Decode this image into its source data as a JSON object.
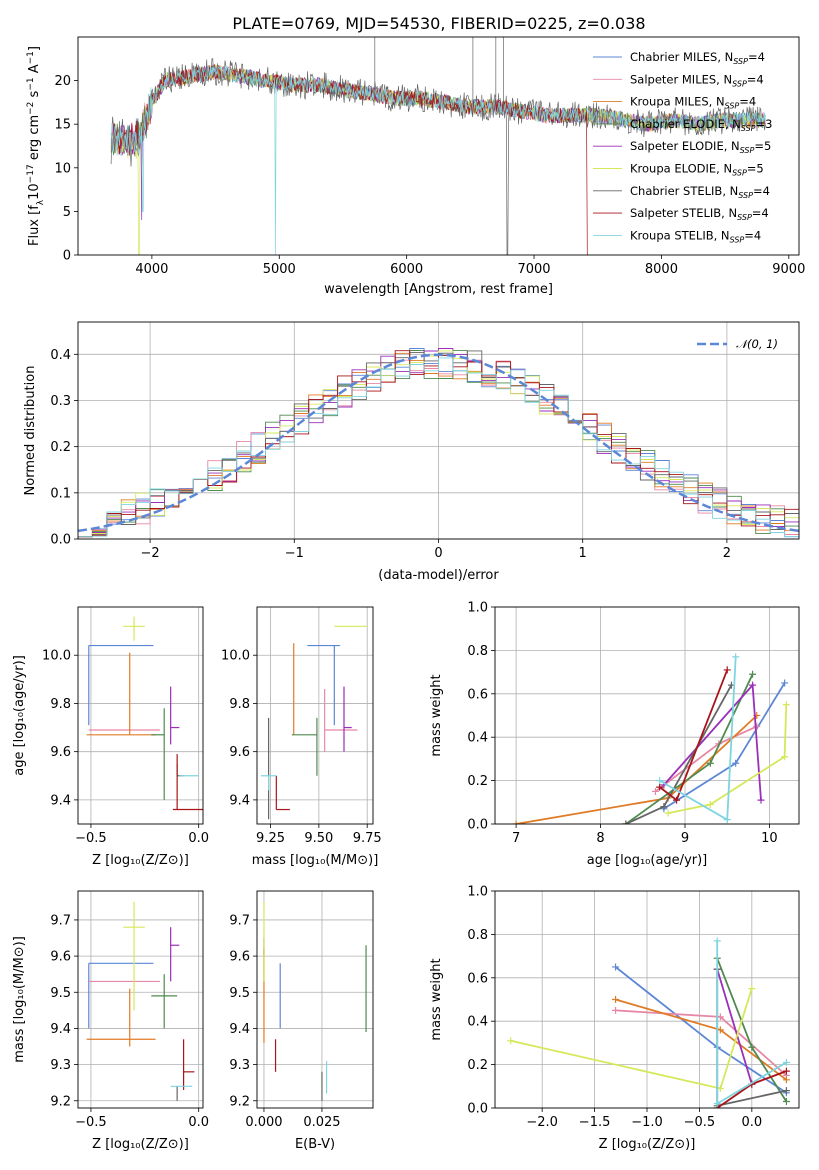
{
  "title": "PLATE=0769, MJD=54530, FIBERID=0225, z=0.038",
  "colors": {
    "chabrier_miles": "#5b87d6",
    "salpeter_miles": "#e887a5",
    "kroupa_miles": "#e07b25",
    "chabrier_elodie": "#4f8a4f",
    "salpeter_elodie": "#9a2fb8",
    "kroupa_elodie": "#d6e85a",
    "chabrier_stelib": "#666666",
    "salpeter_stelib": "#a8151a",
    "kroupa_stelib": "#7fd4e0",
    "normal_curve": "#5b87d6"
  },
  "chart_data": [
    {
      "type": "line",
      "panel": "spectrum",
      "title": "PLATE=0769, MJD=54530, FIBERID=0225, z=0.038",
      "xlabel": "wavelength [Angstrom, rest frame]",
      "ylabel": "Flux [f_λ 10^-17 erg cm^-2 s^-1 A^-1]",
      "xlim": [
        3420,
        9080
      ],
      "ylim": [
        0,
        25
      ],
      "xticks": [
        "4000",
        "5000",
        "6000",
        "7000",
        "8000",
        "9000"
      ],
      "yticks": [
        "0",
        "5",
        "10",
        "15",
        "20"
      ],
      "legend_position": "top-right",
      "legend": [
        {
          "base": "Chabrier MILES, N",
          "sub": "SSP",
          "tail": "=4",
          "color_key": "chabrier_miles"
        },
        {
          "base": "Salpeter MILES, N",
          "sub": "SSP",
          "tail": "=4",
          "color_key": "salpeter_miles"
        },
        {
          "base": "Kroupa MILES, N",
          "sub": "SSP",
          "tail": "=4",
          "color_key": "kroupa_miles"
        },
        {
          "base": "Chabrier ELODIE, N",
          "sub": "SSP",
          "tail": "=3",
          "color_key": "chabrier_elodie"
        },
        {
          "base": "Salpeter ELODIE, N",
          "sub": "SSP",
          "tail": "=5",
          "color_key": "salpeter_elodie"
        },
        {
          "base": "Kroupa ELODIE, N",
          "sub": "SSP",
          "tail": "=5",
          "color_key": "kroupa_elodie"
        },
        {
          "base": "Chabrier STELIB, N",
          "sub": "SSP",
          "tail": "=4",
          "color_key": "chabrier_stelib"
        },
        {
          "base": "Salpeter STELIB, N",
          "sub": "SSP",
          "tail": "=4",
          "color_key": "salpeter_stelib"
        },
        {
          "base": "Kroupa STELIB, N",
          "sub": "SSP",
          "tail": "=4",
          "color_key": "kroupa_stelib"
        }
      ],
      "continuum": [
        [
          3680,
          13.5
        ],
        [
          3800,
          13.0
        ],
        [
          3900,
          13.5
        ],
        [
          4000,
          17.5
        ],
        [
          4100,
          20.0
        ],
        [
          4300,
          20.5
        ],
        [
          4500,
          21.0
        ],
        [
          4700,
          20.5
        ],
        [
          4900,
          20.0
        ],
        [
          5100,
          19.5
        ],
        [
          5300,
          19.5
        ],
        [
          5500,
          19.0
        ],
        [
          5700,
          18.5
        ],
        [
          5900,
          18.0
        ],
        [
          6100,
          18.0
        ],
        [
          6300,
          17.5
        ],
        [
          6500,
          17.0
        ],
        [
          6700,
          17.0
        ],
        [
          6900,
          16.5
        ],
        [
          7100,
          16.0
        ],
        [
          7300,
          16.0
        ],
        [
          7500,
          16.0
        ],
        [
          7700,
          15.5
        ],
        [
          7900,
          15.0
        ],
        [
          8100,
          15.5
        ],
        [
          8300,
          15.0
        ],
        [
          8500,
          15.5
        ],
        [
          8700,
          15.5
        ],
        [
          8820,
          15.5
        ]
      ]
    },
    {
      "type": "bar",
      "panel": "residual-histogram",
      "xlabel": "(data-model)/error",
      "ylabel": "Normed distribution",
      "xlim": [
        -2.5,
        2.5
      ],
      "ylim": [
        0,
        0.47
      ],
      "xticks": [
        "−2",
        "−1",
        "0",
        "1",
        "2"
      ],
      "yticks": [
        "0.0",
        "0.1",
        "0.2",
        "0.3",
        "0.4"
      ],
      "legend_position": "top-right",
      "legend": [
        {
          "label": "𝒩(0, 1)",
          "color_key": "normal_curve"
        }
      ],
      "curve": {
        "type": "normal",
        "mean": 0,
        "sigma": 1
      }
    },
    {
      "type": "scatter",
      "panel": "age-vs-Z",
      "xlabel": "Z [log₁₀(Z/Z⊙)]",
      "ylabel": "age [log₁₀(age/yr)]",
      "xlim": [
        -0.56,
        0.02
      ],
      "ylim": [
        9.3,
        10.2
      ],
      "xticks": [
        "−0.5",
        "0.0"
      ],
      "yticks": [
        "9.4",
        "9.6",
        "9.8",
        "10.0"
      ],
      "points": [
        {
          "color_key": "chabrier_miles",
          "x": -0.51,
          "xerr": [
            0.0,
            0.3
          ],
          "y": 10.04,
          "yerr": [
            0.33,
            0.0
          ]
        },
        {
          "color_key": "salpeter_miles",
          "x": -0.51,
          "xerr": [
            0.0,
            0.33
          ],
          "y": 9.69,
          "yerr": [
            0.0,
            0.0
          ]
        },
        {
          "color_key": "kroupa_miles",
          "x": -0.32,
          "xerr": [
            0.2,
            0.12
          ],
          "y": 9.67,
          "yerr": [
            0.0,
            0.34
          ]
        },
        {
          "color_key": "chabrier_elodie",
          "x": -0.16,
          "xerr": [
            0.06,
            0.0
          ],
          "y": 9.67,
          "yerr": [
            0.27,
            0.11
          ]
        },
        {
          "color_key": "salpeter_elodie",
          "x": -0.13,
          "xerr": [
            0.0,
            0.04
          ],
          "y": 9.7,
          "yerr": [
            0.07,
            0.17
          ]
        },
        {
          "color_key": "kroupa_elodie",
          "x": -0.3,
          "xerr": [
            0.05,
            0.05
          ],
          "y": 10.12,
          "yerr": [
            0.06,
            0.04
          ]
        },
        {
          "color_key": "chabrier_stelib",
          "x": -0.1,
          "xerr": [
            0.0,
            0.03
          ],
          "y": 9.5,
          "yerr": [
            0.0,
            0.05
          ]
        },
        {
          "color_key": "salpeter_stelib",
          "x": -0.1,
          "xerr": [
            0.02,
            0.12
          ],
          "y": 9.36,
          "yerr": [
            0.0,
            0.23
          ]
        },
        {
          "color_key": "kroupa_stelib",
          "x": -0.06,
          "xerr": [
            0.03,
            0.06
          ],
          "y": 9.5,
          "yerr": [
            0.0,
            0.0
          ]
        }
      ]
    },
    {
      "type": "scatter",
      "panel": "age-vs-mass",
      "xlabel": "mass [log₁₀(M/M⊙)]",
      "ylabel": "",
      "xlim": [
        9.18,
        9.78
      ],
      "ylim": [
        9.3,
        10.2
      ],
      "xticks": [
        "9.25",
        "9.50",
        "9.75"
      ],
      "yticks": [
        "9.4",
        "9.6",
        "9.8",
        "10.0"
      ],
      "points": [
        {
          "color_key": "chabrier_miles",
          "x": 9.58,
          "xerr": [
            0.14,
            0.03
          ],
          "y": 10.04,
          "yerr": [
            0.33,
            0.0
          ]
        },
        {
          "color_key": "salpeter_miles",
          "x": 9.53,
          "xerr": [
            0.0,
            0.17
          ],
          "y": 9.69,
          "yerr": [
            0.09,
            0.17
          ]
        },
        {
          "color_key": "kroupa_miles",
          "x": 9.37,
          "xerr": [
            0.0,
            0.0
          ],
          "y": 9.67,
          "yerr": [
            0.0,
            0.38
          ]
        },
        {
          "color_key": "chabrier_elodie",
          "x": 9.49,
          "xerr": [
            0.13,
            0.0
          ],
          "y": 9.67,
          "yerr": [
            0.17,
            0.07
          ]
        },
        {
          "color_key": "salpeter_elodie",
          "x": 9.63,
          "xerr": [
            0.0,
            0.04
          ],
          "y": 9.7,
          "yerr": [
            0.1,
            0.17
          ]
        },
        {
          "color_key": "kroupa_elodie",
          "x": 9.68,
          "xerr": [
            0.1,
            0.07
          ],
          "y": 10.12,
          "yerr": [
            0.0,
            0.0
          ]
        },
        {
          "color_key": "chabrier_stelib",
          "x": 9.24,
          "xerr": [
            0.0,
            0.0
          ],
          "y": 9.5,
          "yerr": [
            0.18,
            0.24
          ]
        },
        {
          "color_key": "salpeter_stelib",
          "x": 9.28,
          "xerr": [
            0.0,
            0.07
          ],
          "y": 9.36,
          "yerr": [
            0.0,
            0.14
          ]
        },
        {
          "color_key": "kroupa_stelib",
          "x": 9.24,
          "xerr": [
            0.04,
            0.04
          ],
          "y": 9.5,
          "yerr": [
            0.06,
            0.0
          ]
        }
      ]
    },
    {
      "type": "line",
      "panel": "weight-vs-age",
      "xlabel": "age [log₁₀(age/yr)]",
      "ylabel": "mass weight",
      "xlim": [
        6.75,
        10.35
      ],
      "ylim": [
        0,
        1.0
      ],
      "xticks": [
        "7",
        "8",
        "9",
        "10"
      ],
      "yticks": [
        "0.0",
        "0.2",
        "0.4",
        "0.6",
        "0.8",
        "1.0"
      ],
      "series": [
        {
          "color_key": "chabrier_miles",
          "x": [
            8.75,
            9.6,
            10.18
          ],
          "y": [
            0.07,
            0.28,
            0.65
          ]
        },
        {
          "color_key": "salpeter_miles",
          "x": [
            8.65,
            9.4,
            9.85
          ],
          "y": [
            0.15,
            0.37,
            0.45
          ]
        },
        {
          "color_key": "kroupa_miles",
          "x": [
            7.0,
            8.8,
            9.85
          ],
          "y": [
            0.0,
            0.12,
            0.5
          ]
        },
        {
          "color_key": "chabrier_elodie",
          "x": [
            8.3,
            9.3,
            9.8
          ],
          "y": [
            0.0,
            0.28,
            0.69
          ]
        },
        {
          "color_key": "salpeter_elodie",
          "x": [
            8.75,
            9.8,
            9.9
          ],
          "y": [
            0.18,
            0.64,
            0.11
          ]
        },
        {
          "color_key": "kroupa_elodie",
          "x": [
            8.8,
            9.3,
            10.18,
            10.2
          ],
          "y": [
            0.05,
            0.09,
            0.31,
            0.55
          ]
        },
        {
          "color_key": "chabrier_stelib",
          "x": [
            8.3,
            8.75,
            9.55
          ],
          "y": [
            0.0,
            0.08,
            0.64
          ]
        },
        {
          "color_key": "salpeter_stelib",
          "x": [
            8.7,
            8.9,
            9.5
          ],
          "y": [
            0.17,
            0.11,
            0.71
          ]
        },
        {
          "color_key": "kroupa_stelib",
          "x": [
            8.7,
            9.5,
            9.6
          ],
          "y": [
            0.2,
            0.02,
            0.77
          ]
        }
      ]
    },
    {
      "type": "scatter",
      "panel": "mass-vs-Z",
      "xlabel": "Z [log₁₀(Z/Z⊙)]",
      "ylabel": "mass [log₁₀(M/M⊙)]",
      "xlim": [
        -0.56,
        0.02
      ],
      "ylim": [
        9.18,
        9.78
      ],
      "xticks": [
        "−0.5",
        "0.0"
      ],
      "yticks": [
        "9.2",
        "9.3",
        "9.4",
        "9.5",
        "9.6",
        "9.7"
      ],
      "points": [
        {
          "color_key": "chabrier_miles",
          "x": -0.51,
          "xerr": [
            0.0,
            0.3
          ],
          "y": 9.58,
          "yerr": [
            0.18,
            0.0
          ]
        },
        {
          "color_key": "salpeter_miles",
          "x": -0.51,
          "xerr": [
            0.0,
            0.33
          ],
          "y": 9.53,
          "yerr": [
            0.0,
            0.0
          ]
        },
        {
          "color_key": "kroupa_miles",
          "x": -0.32,
          "xerr": [
            0.2,
            0.12
          ],
          "y": 9.37,
          "yerr": [
            0.02,
            0.14
          ]
        },
        {
          "color_key": "chabrier_elodie",
          "x": -0.16,
          "xerr": [
            0.06,
            0.06
          ],
          "y": 9.49,
          "yerr": [
            0.09,
            0.06
          ]
        },
        {
          "color_key": "salpeter_elodie",
          "x": -0.13,
          "xerr": [
            0.0,
            0.04
          ],
          "y": 9.63,
          "yerr": [
            0.1,
            0.05
          ]
        },
        {
          "color_key": "kroupa_elodie",
          "x": -0.3,
          "xerr": [
            0.05,
            0.05
          ],
          "y": 9.68,
          "yerr": [
            0.23,
            0.07
          ]
        },
        {
          "color_key": "chabrier_stelib",
          "x": -0.1,
          "xerr": [
            0.0,
            0.0
          ],
          "y": 9.24,
          "yerr": [
            0.04,
            0.0
          ]
        },
        {
          "color_key": "salpeter_stelib",
          "x": -0.07,
          "xerr": [
            0.0,
            0.05
          ],
          "y": 9.28,
          "yerr": [
            0.05,
            0.09
          ]
        },
        {
          "color_key": "kroupa_stelib",
          "x": -0.08,
          "xerr": [
            0.05,
            0.05
          ],
          "y": 9.24,
          "yerr": [
            0.0,
            0.0
          ]
        }
      ]
    },
    {
      "type": "scatter",
      "panel": "mass-vs-EBV",
      "xlabel": "E(B-V)",
      "ylabel": "",
      "xlim": [
        -0.003,
        0.047
      ],
      "ylim": [
        9.18,
        9.78
      ],
      "xticks": [
        "0.000",
        "0.025"
      ],
      "yticks": [
        "9.2",
        "9.3",
        "9.4",
        "9.5",
        "9.6",
        "9.7"
      ],
      "points": [
        {
          "color_key": "chabrier_miles",
          "x": 0.007,
          "xerr": [
            0.0,
            0.0
          ],
          "y": 9.49,
          "yerr": [
            0.09,
            0.09
          ]
        },
        {
          "color_key": "salpeter_miles",
          "x": 0.0,
          "xerr": [
            0.0,
            0.0
          ],
          "y": 9.53,
          "yerr": [
            0.0,
            0.09
          ]
        },
        {
          "color_key": "kroupa_miles",
          "x": 0.0,
          "xerr": [
            0.0,
            0.0
          ],
          "y": 9.4,
          "yerr": [
            0.04,
            0.22
          ]
        },
        {
          "color_key": "chabrier_elodie",
          "x": 0.044,
          "xerr": [
            0.0,
            0.0
          ],
          "y": 9.51,
          "yerr": [
            0.12,
            0.12
          ]
        },
        {
          "color_key": "salpeter_elodie",
          "x": 0.0,
          "xerr": [
            0.0,
            0.0
          ],
          "y": 9.6,
          "yerr": [
            0.0,
            0.05
          ]
        },
        {
          "color_key": "kroupa_elodie",
          "x": 0.0,
          "xerr": [
            0.0,
            0.0
          ],
          "y": 9.63,
          "yerr": [
            0.1,
            0.12
          ]
        },
        {
          "color_key": "chabrier_stelib",
          "x": 0.025,
          "xerr": [
            0.0,
            0.0
          ],
          "y": 9.24,
          "yerr": [
            0.04,
            0.04
          ]
        },
        {
          "color_key": "salpeter_stelib",
          "x": 0.005,
          "xerr": [
            0.0,
            0.0
          ],
          "y": 9.32,
          "yerr": [
            0.04,
            0.05
          ]
        },
        {
          "color_key": "kroupa_stelib",
          "x": 0.027,
          "xerr": [
            0.0,
            0.0
          ],
          "y": 9.26,
          "yerr": [
            0.04,
            0.05
          ]
        }
      ]
    },
    {
      "type": "line",
      "panel": "weight-vs-Z",
      "xlabel": "Z [log₁₀(Z/Z⊙)]",
      "ylabel": "mass weight",
      "xlim": [
        -2.45,
        0.45
      ],
      "ylim": [
        0,
        1.0
      ],
      "xticks": [
        "−2.0",
        "−1.5",
        "−1.0",
        "−0.5",
        "0.0"
      ],
      "yticks": [
        "0.0",
        "0.2",
        "0.4",
        "0.6",
        "0.8",
        "1.0"
      ],
      "series": [
        {
          "color_key": "chabrier_miles",
          "x": [
            -1.3,
            -0.33,
            0.33
          ],
          "y": [
            0.65,
            0.28,
            0.07
          ]
        },
        {
          "color_key": "salpeter_miles",
          "x": [
            -1.3,
            -0.3,
            0.33
          ],
          "y": [
            0.45,
            0.42,
            0.15
          ]
        },
        {
          "color_key": "kroupa_miles",
          "x": [
            -1.3,
            -0.3,
            0.33
          ],
          "y": [
            0.5,
            0.36,
            0.13
          ]
        },
        {
          "color_key": "chabrier_elodie",
          "x": [
            -0.33,
            0.0,
            0.33
          ],
          "y": [
            0.69,
            0.28,
            0.03
          ]
        },
        {
          "color_key": "salpeter_elodie",
          "x": [
            -0.33,
            -0.33,
            0.0
          ],
          "y": [
            0.64,
            0.64,
            0.11
          ]
        },
        {
          "color_key": "kroupa_elodie",
          "x": [
            -2.3,
            -0.3,
            0.0
          ],
          "y": [
            0.31,
            0.09,
            0.55
          ]
        },
        {
          "color_key": "chabrier_stelib",
          "x": [
            -0.33,
            -0.33,
            0.33
          ],
          "y": [
            0.64,
            0.01,
            0.08
          ]
        },
        {
          "color_key": "salpeter_stelib",
          "x": [
            -0.33,
            0.0,
            0.33
          ],
          "y": [
            0.0,
            0.11,
            0.17
          ]
        },
        {
          "color_key": "kroupa_stelib",
          "x": [
            -0.33,
            -0.33,
            0.33
          ],
          "y": [
            0.77,
            0.02,
            0.21
          ]
        }
      ]
    }
  ]
}
